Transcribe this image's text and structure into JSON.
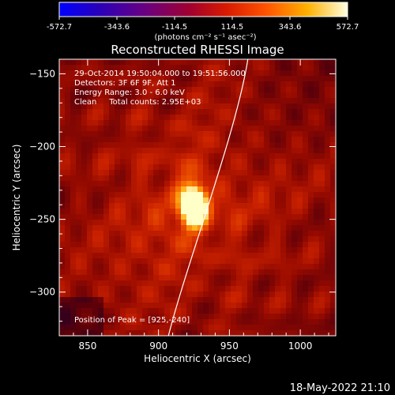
{
  "chart_data": {
    "type": "heatmap",
    "title": "Reconstructed RHESSI Image",
    "xlabel": "Heliocentric X (arcsec)",
    "ylabel": "Heliocentric Y (arcsec)",
    "xlim": [
      830,
      1025
    ],
    "ylim": [
      -330,
      -140
    ],
    "x_ticks": [
      850,
      900,
      950,
      1000
    ],
    "y_ticks": [
      -150,
      -200,
      -250,
      -300
    ],
    "peak": {
      "x": 925,
      "y": -240
    },
    "colorbar": {
      "min": -572.7,
      "max": 572.7,
      "ticks": [
        "-572.7",
        "-343.6",
        "-114.5",
        "114.5",
        "343.6",
        "572.7"
      ],
      "units_label": "(photons cm⁻² s⁻¹ asec⁻²)"
    },
    "annotations": [
      "29-Oct-2014 19:50:04.000 to 19:51:56.000",
      "Detectors: 3F 6F 9F, Att 1",
      "Energy Range: 3.0 - 6.0 keV",
      "Clean     Total counts: 2.95E+03"
    ],
    "peak_label": "Position of Peak = [925,-240]",
    "timestamp": "18-May-2022 21:10",
    "colors": {
      "background": "#000000",
      "axis": "#ffffff",
      "limb": "#ffffff"
    }
  }
}
